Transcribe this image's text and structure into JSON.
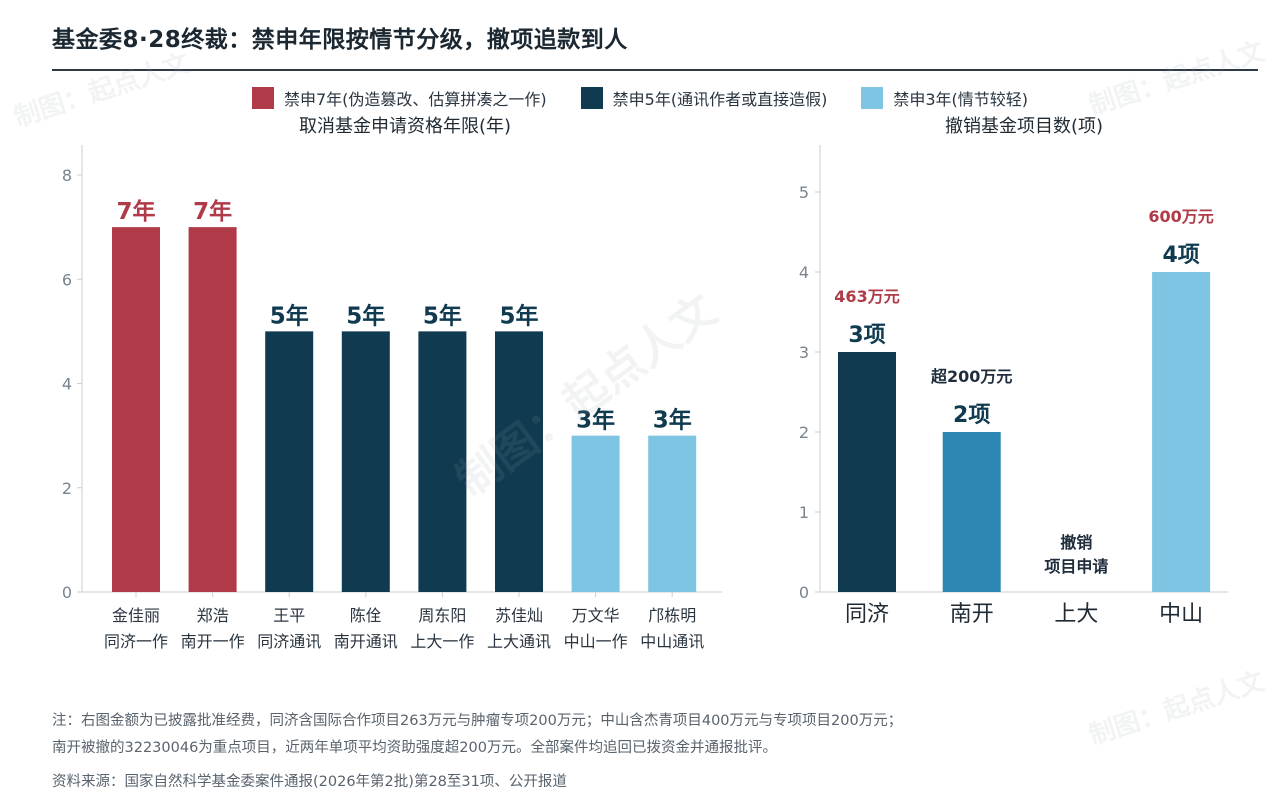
{
  "title": "基金委8·28终裁：禁申年限按情节分级，撤项追款到人",
  "legend": [
    {
      "label": "禁申7年(伪造篡改、估算拼凑之一作)",
      "color": "#b03a48"
    },
    {
      "label": "禁申5年(通讯作者或直接造假)",
      "color": "#0f3a4f"
    },
    {
      "label": "禁申3年(情节较轻)",
      "color": "#7ec4e3"
    }
  ],
  "chart_data": [
    {
      "type": "bar",
      "title": "取消基金申请资格年限(年)",
      "categories": [
        [
          "金佳丽",
          "同济一作"
        ],
        [
          "郑浩",
          "南开一作"
        ],
        [
          "王平",
          "同济通讯"
        ],
        [
          "陈佺",
          "南开通讯"
        ],
        [
          "周东阳",
          "上大一作"
        ],
        [
          "苏佳灿",
          "上大通讯"
        ],
        [
          "万文华",
          "中山一作"
        ],
        [
          "邝栋明",
          "中山通讯"
        ]
      ],
      "values": [
        7,
        7,
        5,
        5,
        5,
        5,
        3,
        3
      ],
      "value_labels": [
        "7年",
        "7年",
        "5年",
        "5年",
        "5年",
        "5年",
        "3年",
        "3年"
      ],
      "colors": [
        "#b03a48",
        "#b03a48",
        "#0f3a4f",
        "#0f3a4f",
        "#0f3a4f",
        "#0f3a4f",
        "#7ec4e3",
        "#7ec4e3"
      ],
      "label_colors": [
        "#b03a48",
        "#b03a48",
        "#0f3a4f",
        "#0f3a4f",
        "#0f3a4f",
        "#0f3a4f",
        "#0f3a4f",
        "#0f3a4f"
      ],
      "ylim": [
        0,
        8
      ],
      "yticks": [
        0,
        2,
        4,
        6,
        8
      ],
      "grid": false
    },
    {
      "type": "bar",
      "title": "撤销基金项目数(项)",
      "categories": [
        "同济",
        "南开",
        "上大",
        "中山"
      ],
      "values": [
        3,
        2,
        0,
        4
      ],
      "value_labels": [
        "3项",
        "2项",
        "",
        "4项"
      ],
      "colors": [
        "#0f3a4f",
        "#2e86b3",
        "#2e86b3",
        "#7ec4e3"
      ],
      "amount_labels": [
        "463万元",
        "超200万元",
        "",
        "600万元"
      ],
      "amount_colors": [
        "#b03a48",
        "#1f2d3d",
        "#1f2d3d",
        "#b03a48"
      ],
      "annotations": [
        {
          "category": "上大",
          "lines": [
            "撤销",
            "项目申请"
          ]
        }
      ],
      "ylim": [
        0,
        5.6
      ],
      "yticks": [
        0,
        1,
        2,
        3,
        4,
        5
      ],
      "grid": false
    }
  ],
  "notes": [
    "注：右图金额为已披露批准经费，同济含国际合作项目263万元与肿瘤专项200万元；中山含杰青项目400万元与专项项目200万元；",
    "南开被撤的32230046为重点项目，近两年单项平均资助强度超200万元。全部案件均追回已拨资金并通报批评。"
  ],
  "source": "资料来源：国家自然科学基金委案件通报(2026年第2批)第28至31项、公开报道",
  "watermark": "制图：起点人文"
}
